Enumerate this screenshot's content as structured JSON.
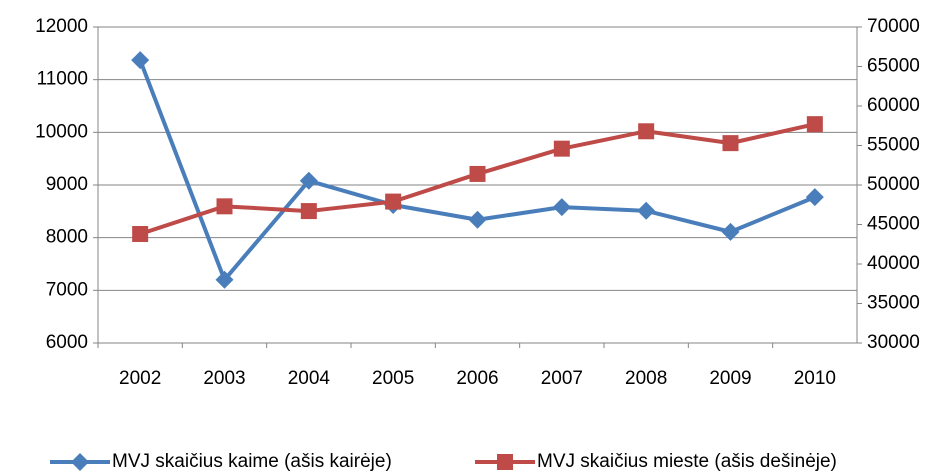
{
  "chart_data": {
    "type": "line",
    "categories": [
      "2002",
      "2003",
      "2004",
      "2005",
      "2006",
      "2007",
      "2008",
      "2009",
      "2010"
    ],
    "series": [
      {
        "name": "MVJ skaičius kaime (ašis kairėje)",
        "color": "#4a7ebb",
        "marker": "diamond",
        "values": [
          11370,
          7200,
          9080,
          8620,
          8340,
          8580,
          8510,
          8110,
          8770
        ]
      },
      {
        "name": "MVJ skaičius mieste (ašis dešinėje)",
        "color": "#be4b48",
        "marker": "square",
        "axis": "y2",
        "values": [
          43800,
          47300,
          46700,
          47900,
          51400,
          54600,
          56800,
          55300,
          57700
        ]
      }
    ],
    "ylim": [
      6000,
      12000
    ],
    "yticks": [
      6000,
      7000,
      8000,
      9000,
      10000,
      11000,
      12000
    ],
    "y2lim": [
      30000,
      70000
    ],
    "y2ticks": [
      30000,
      35000,
      40000,
      45000,
      50000,
      55000,
      60000,
      65000,
      70000
    ],
    "grid": true,
    "legend": "bottom"
  }
}
